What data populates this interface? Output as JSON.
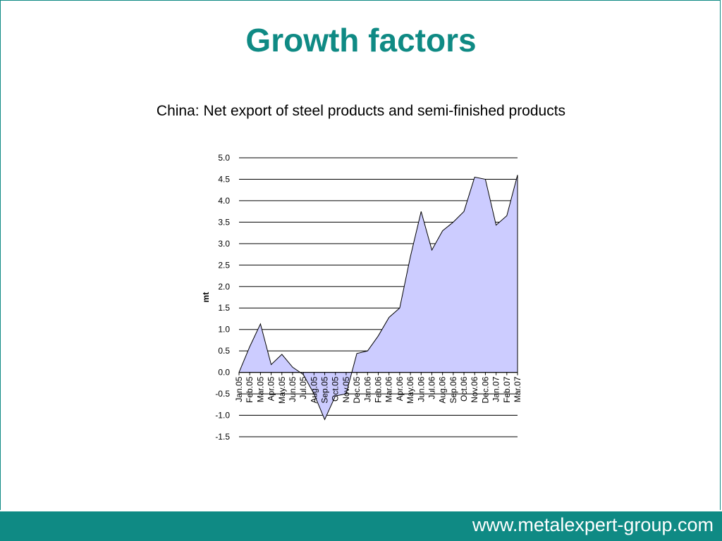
{
  "slide": {
    "title": "Growth factors",
    "subtitle": "China: Net export of steel products and semi-finished products",
    "footer_url": "www.metalexpert-group.com"
  },
  "colors": {
    "teal": "#0f8a84",
    "area_fill": "#ccccff"
  },
  "chart_data": {
    "type": "area",
    "title": "",
    "xlabel": "",
    "ylabel": "mt",
    "ylim": [
      -1.5,
      5.0
    ],
    "yticks": [
      "5.0",
      "4.5",
      "4.0",
      "3.5",
      "3.0",
      "2.5",
      "2.0",
      "1.5",
      "1.0",
      "0.5",
      "0.0",
      "-0.5",
      "-1.0",
      "-1.5"
    ],
    "grid": true,
    "legend": "none",
    "categories": [
      "Jan.05",
      "Feb.05",
      "Mar.05",
      "Apr.05",
      "May.05",
      "Jun.05",
      "Jul.05",
      "Aug.05",
      "Sep.05",
      "Oct.05",
      "Nov.05",
      "Dec.05",
      "Jan.06",
      "Feb.06",
      "Mar.06",
      "Apr.06",
      "May.06",
      "Jun.06",
      "Jul.06",
      "Aug.06",
      "Sep.06",
      "Oct.06",
      "Nov.06",
      "Dec.06",
      "Jan.07",
      "Feb.07",
      "Mar.07"
    ],
    "series": [
      {
        "values": [
          0.0,
          0.6,
          1.13,
          0.18,
          0.42,
          0.12,
          -0.05,
          -0.5,
          -1.1,
          -0.55,
          -0.5,
          0.44,
          0.5,
          0.85,
          1.28,
          1.5,
          2.7,
          3.75,
          2.85,
          3.3,
          3.5,
          3.75,
          4.55,
          4.5,
          3.43,
          3.65,
          4.6
        ]
      }
    ]
  }
}
